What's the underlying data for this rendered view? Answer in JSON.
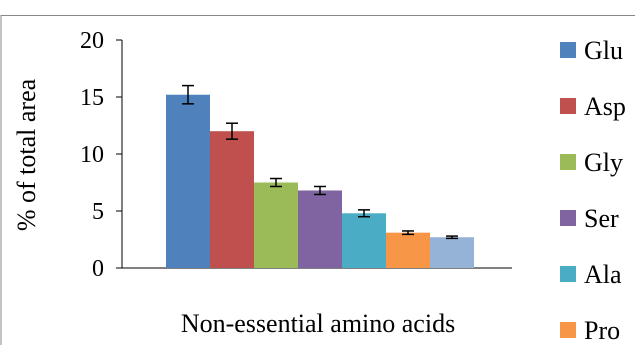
{
  "chart_data": {
    "type": "bar",
    "title": "",
    "xlabel": "Non-essential amino acids",
    "ylabel": "% of total area",
    "ylim": [
      0,
      20
    ],
    "yticks": [
      0,
      5,
      10,
      15,
      20
    ],
    "grid": false,
    "legend_position": "right",
    "series": [
      {
        "name": "Glu",
        "value": 15.2,
        "error": 0.8,
        "color": "#4F81BD"
      },
      {
        "name": "Asp",
        "value": 12.0,
        "error": 0.7,
        "color": "#C0504D"
      },
      {
        "name": "Gly",
        "value": 7.5,
        "error": 0.35,
        "color": "#9BBB59"
      },
      {
        "name": "Ser",
        "value": 6.8,
        "error": 0.35,
        "color": "#8064A2"
      },
      {
        "name": "Ala",
        "value": 4.8,
        "error": 0.3,
        "color": "#4BACC6"
      },
      {
        "name": "Pro",
        "value": 3.1,
        "error": 0.15,
        "color": "#F79646"
      },
      {
        "name": "",
        "value": 2.7,
        "error": 0.1,
        "color": "#95B3D7"
      }
    ],
    "legend_entries_visible": [
      "Glu",
      "Asp",
      "Gly",
      "Ser",
      "Ala",
      "Pro"
    ]
  }
}
